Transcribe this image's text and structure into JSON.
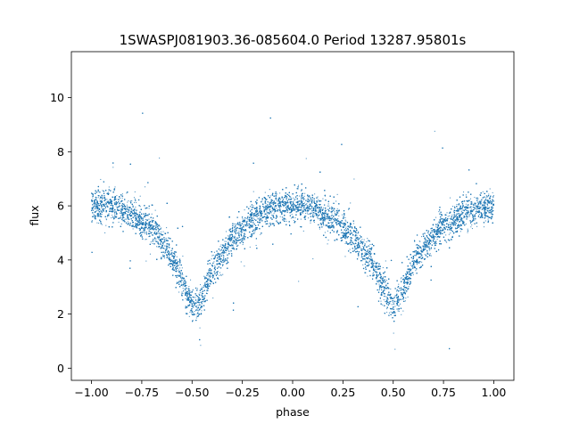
{
  "chart_data": {
    "type": "scatter",
    "title": "1SWASPJ081903.36-085604.0 Period 13287.95801s",
    "xlabel": "phase",
    "ylabel": "flux",
    "xlim": [
      -1.1,
      1.1
    ],
    "ylim": [
      -0.45,
      11.7
    ],
    "xticks": [
      -1.0,
      -0.75,
      -0.5,
      -0.25,
      0.0,
      0.25,
      0.5,
      0.75,
      1.0
    ],
    "xtick_labels": [
      "−1.00",
      "−0.75",
      "−0.50",
      "−0.25",
      "0.00",
      "0.25",
      "0.50",
      "0.75",
      "1.00"
    ],
    "yticks": [
      0,
      2,
      4,
      6,
      8,
      10
    ],
    "ytick_labels": [
      "0",
      "2",
      "4",
      "6",
      "8",
      "10"
    ],
    "grid": false,
    "marker_color": "#1f77b4",
    "x_range": [
      -1.0,
      1.0
    ],
    "curve": {
      "phase": [
        -1.0,
        -0.9,
        -0.8,
        -0.7,
        -0.6,
        -0.5,
        -0.45,
        -0.4,
        -0.3,
        -0.2,
        -0.1,
        0.0,
        0.1,
        0.2,
        0.3,
        0.4,
        0.45,
        0.5,
        0.55,
        0.6,
        0.7,
        0.8,
        0.9,
        1.0
      ],
      "flux": [
        6.0,
        6.0,
        5.7,
        5.2,
        4.2,
        2.3,
        2.5,
        3.6,
        4.8,
        5.5,
        5.9,
        6.05,
        5.9,
        5.5,
        4.9,
        3.8,
        3.0,
        2.3,
        2.9,
        3.9,
        4.9,
        5.5,
        5.8,
        6.0
      ]
    },
    "scatter_sd": 0.3,
    "outlier_fraction": 0.02,
    "n_points": 16000
  }
}
